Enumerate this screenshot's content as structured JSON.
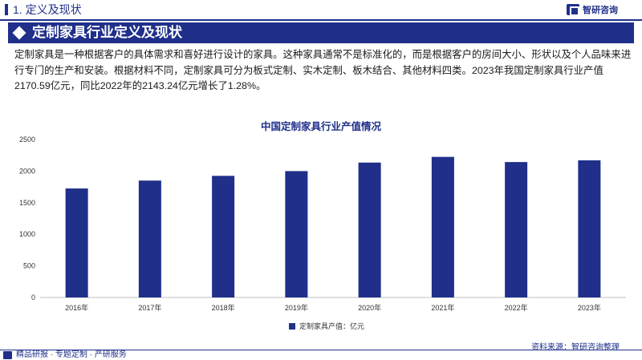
{
  "header": {
    "section_title": "1. 定义及现状",
    "logo_text": "智研咨询"
  },
  "banner": {
    "title": "定制家具行业定义及现状"
  },
  "intro": {
    "text": "定制家具是一种根据客户的具体需求和喜好进行设计的家具。这种家具通常不是标准化的，而是根据客户的房间大小、形状以及个人品味来进行专门的生产和安装。根据材料不同，定制家具可分为板式定制、实木定制、板木结合、其他材料四类。2023年我国定制家具行业产值2170.59亿元，同比2022年的2143.24亿元增长了1.28%。"
  },
  "chart_data": {
    "type": "bar",
    "title": "中国定制家具行业产值情况",
    "categories": [
      "2016年",
      "2017年",
      "2018年",
      "2019年",
      "2020年",
      "2021年",
      "2022年",
      "2023年"
    ],
    "series": [
      {
        "name": "定制家具产值：亿元",
        "values": [
          1725,
          1850,
          1925,
          2000,
          2135,
          2225,
          2143.24,
          2170.59
        ],
        "color": "#1f2f8a"
      }
    ],
    "yticks": [
      "0",
      "500",
      "1000",
      "1500",
      "2000",
      "2500"
    ],
    "ylim": [
      0,
      2500
    ],
    "grid": false,
    "legend": "bottom-center"
  },
  "source": "资料来源：智研咨询整理",
  "footer": {
    "text": "精品研报 · 专题定制 · 产研服务"
  }
}
